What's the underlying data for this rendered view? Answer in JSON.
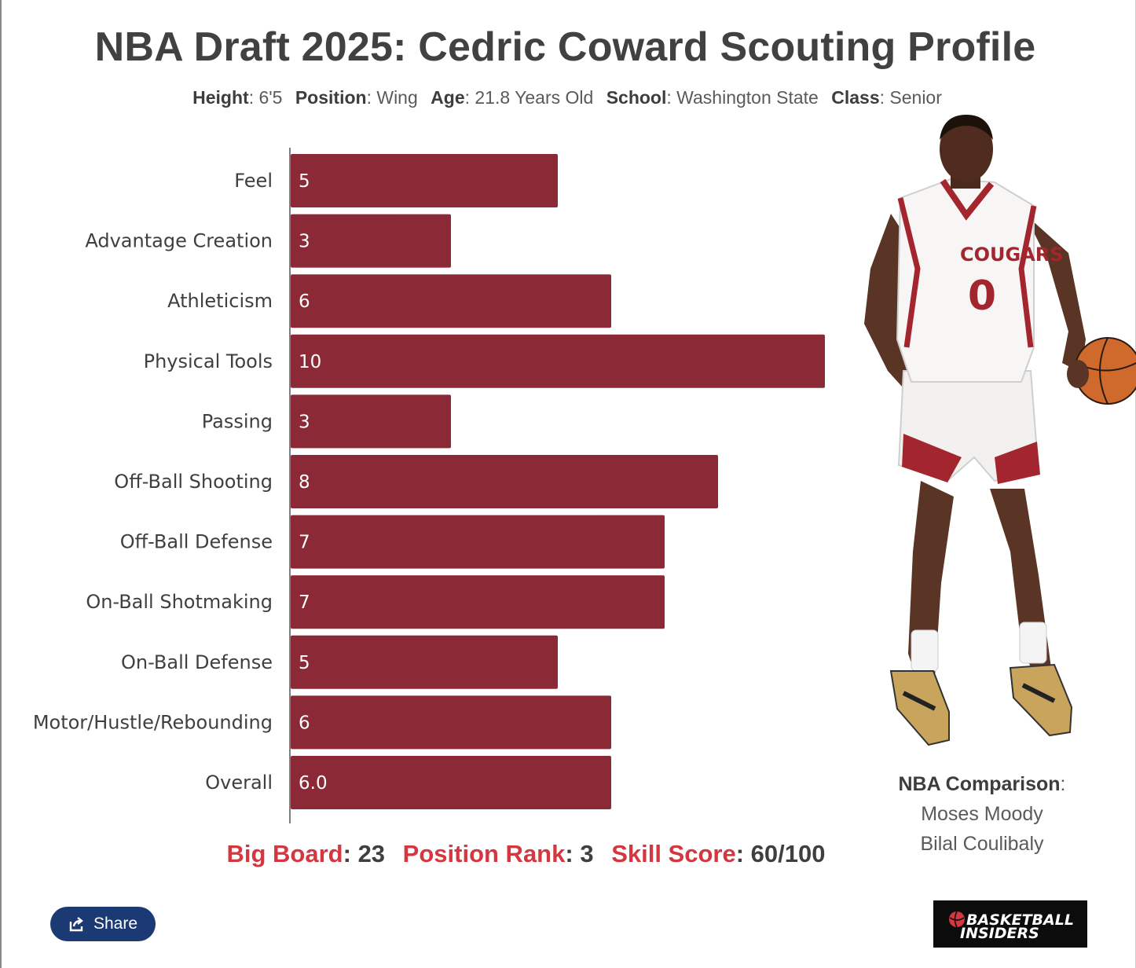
{
  "title": "NBA Draft 2025: Cedric Coward Scouting Profile",
  "profile": {
    "height_label": "Height",
    "height": "6'5",
    "position_label": "Position",
    "position": "Wing",
    "age_label": "Age",
    "age": "21.8 Years Old",
    "school_label": "School",
    "school": "Washington State",
    "class_label": "Class",
    "class": "Senior"
  },
  "chart_data": {
    "type": "bar",
    "orientation": "horizontal",
    "categories": [
      "Feel",
      "Advantage Creation",
      "Athleticism",
      "Physical Tools",
      "Passing",
      "Off-Ball Shooting",
      "Off-Ball Defense",
      "On-Ball Shotmaking",
      "On-Ball Defense",
      "Motor/Hustle/Rebounding",
      "Overall"
    ],
    "values": [
      5,
      3,
      6,
      10,
      3,
      8,
      7,
      7,
      5,
      6,
      6.0
    ],
    "value_labels": [
      "5",
      "3",
      "6",
      "10",
      "3",
      "8",
      "7",
      "7",
      "5",
      "6",
      "6.0"
    ],
    "xlim": [
      0,
      10
    ],
    "grid": false,
    "bar_color": "#8b2a36"
  },
  "comparison": {
    "label": "NBA Comparison",
    "players": [
      "Moses Moody",
      "Bilal Coulibaly"
    ]
  },
  "rankings": {
    "big_board_label": "Big Board",
    "big_board": "23",
    "position_rank_label": "Position Rank",
    "position_rank": "3",
    "skill_score_label": "Skill Score",
    "skill_score": "60/100"
  },
  "jersey": {
    "team": "COUGARS",
    "number": "0"
  },
  "share": {
    "label": "Share"
  },
  "logo": {
    "line1": "BASKETBALL",
    "line2": "INSIDERS"
  },
  "colors": {
    "accent_red": "#d4373f",
    "share_blue": "#1b3a73",
    "bar": "#8b2a36"
  }
}
